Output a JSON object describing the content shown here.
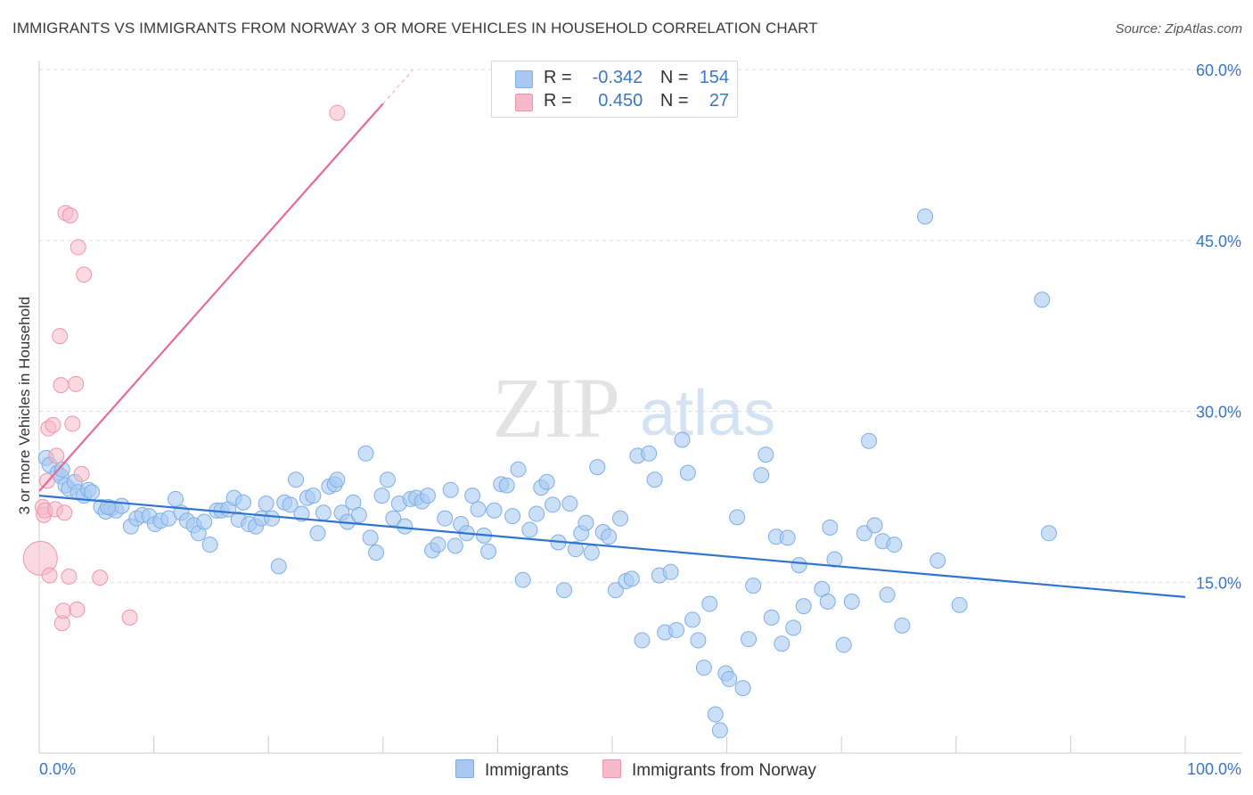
{
  "title": "IMMIGRANTS VS IMMIGRANTS FROM NORWAY 3 OR MORE VEHICLES IN HOUSEHOLD CORRELATION CHART",
  "source": "Source: ZipAtlas.com",
  "watermark": {
    "zip": "ZIP",
    "atlas": "atlas"
  },
  "legend": {
    "rows": [
      {
        "r_label": "R =",
        "r_value": "-0.342",
        "n_label": "N =",
        "n_value": "154",
        "color": "#a9c9f2"
      },
      {
        "r_label": "R =",
        "r_value": "0.450",
        "n_label": "N =",
        "n_value": "27",
        "color": "#f6b9c9"
      }
    ]
  },
  "bottom_legend": {
    "immigrants": "Immigrants",
    "norway": "Immigrants from Norway"
  },
  "colors": {
    "blue_fill": "#a9c9f2",
    "blue_stroke": "#7eaee6",
    "blue_line": "#2f74d0",
    "pink_fill": "#f6b9c9",
    "pink_stroke": "#ef94ad",
    "pink_line": "#e56b94",
    "axis_text": "#3a76c4",
    "grid": "#dedede"
  },
  "chart_data": {
    "type": "scatter",
    "xlabel": "",
    "ylabel": "3 or more Vehicles in Household",
    "xlim": [
      0,
      100
    ],
    "ylim": [
      0,
      60
    ],
    "x_tick_labels": [
      "0.0%",
      "100.0%"
    ],
    "y_tick_labels": [
      "15.0%",
      "30.0%",
      "45.0%",
      "60.0%"
    ],
    "y_ticks": [
      15,
      30,
      45,
      60
    ],
    "grid": true,
    "series": [
      {
        "name": "Immigrants",
        "points": [
          [
            0.6,
            25.9
          ],
          [
            0.9,
            25.3
          ],
          [
            1.6,
            24.6
          ],
          [
            1.9,
            24.3
          ],
          [
            2.3,
            23.5
          ],
          [
            2.6,
            23.2
          ],
          [
            3.1,
            23.8
          ],
          [
            3.4,
            22.9
          ],
          [
            3.9,
            22.6
          ],
          [
            4.3,
            23.1
          ],
          [
            4.6,
            22.9
          ],
          [
            5.4,
            21.6
          ],
          [
            5.8,
            21.2
          ],
          [
            6.3,
            21.5
          ],
          [
            6.7,
            21.3
          ],
          [
            7.2,
            21.7
          ],
          [
            8.0,
            19.9
          ],
          [
            8.5,
            20.6
          ],
          [
            9.0,
            20.9
          ],
          [
            9.6,
            20.8
          ],
          [
            10.1,
            20.1
          ],
          [
            10.6,
            20.4
          ],
          [
            11.3,
            20.6
          ],
          [
            11.9,
            22.3
          ],
          [
            12.4,
            21.1
          ],
          [
            12.9,
            20.4
          ],
          [
            13.5,
            20.0
          ],
          [
            13.9,
            19.3
          ],
          [
            14.4,
            20.3
          ],
          [
            14.9,
            18.3
          ],
          [
            15.5,
            21.3
          ],
          [
            15.9,
            21.3
          ],
          [
            16.5,
            21.4
          ],
          [
            17.0,
            22.4
          ],
          [
            17.4,
            20.5
          ],
          [
            17.8,
            22.0
          ],
          [
            18.3,
            20.1
          ],
          [
            18.9,
            19.9
          ],
          [
            19.4,
            20.6
          ],
          [
            19.8,
            21.9
          ],
          [
            20.3,
            20.6
          ],
          [
            20.9,
            16.4
          ],
          [
            21.4,
            22.0
          ],
          [
            21.9,
            21.8
          ],
          [
            22.4,
            24.0
          ],
          [
            22.9,
            21.0
          ],
          [
            23.4,
            22.4
          ],
          [
            23.9,
            22.6
          ],
          [
            24.3,
            19.3
          ],
          [
            24.8,
            21.1
          ],
          [
            25.3,
            23.4
          ],
          [
            25.8,
            23.6
          ],
          [
            26.4,
            21.1
          ],
          [
            26.9,
            20.3
          ],
          [
            27.4,
            22.0
          ],
          [
            27.9,
            20.9
          ],
          [
            28.5,
            26.3
          ],
          [
            28.9,
            18.9
          ],
          [
            29.4,
            17.6
          ],
          [
            29.9,
            22.6
          ],
          [
            30.4,
            24.0
          ],
          [
            30.9,
            20.6
          ],
          [
            31.4,
            21.9
          ],
          [
            31.9,
            19.9
          ],
          [
            32.4,
            22.3
          ],
          [
            32.9,
            22.4
          ],
          [
            33.4,
            22.1
          ],
          [
            33.9,
            22.6
          ],
          [
            34.3,
            17.8
          ],
          [
            34.8,
            18.3
          ],
          [
            35.4,
            20.6
          ],
          [
            35.9,
            23.1
          ],
          [
            36.3,
            18.2
          ],
          [
            36.8,
            20.1
          ],
          [
            37.3,
            19.3
          ],
          [
            37.8,
            22.6
          ],
          [
            38.3,
            21.4
          ],
          [
            38.8,
            19.1
          ],
          [
            39.2,
            17.7
          ],
          [
            39.7,
            21.3
          ],
          [
            40.3,
            23.6
          ],
          [
            40.8,
            23.5
          ],
          [
            41.3,
            20.8
          ],
          [
            41.8,
            24.9
          ],
          [
            42.2,
            15.2
          ],
          [
            42.8,
            19.6
          ],
          [
            43.4,
            21.0
          ],
          [
            43.8,
            23.3
          ],
          [
            44.3,
            23.8
          ],
          [
            44.8,
            21.8
          ],
          [
            45.3,
            18.5
          ],
          [
            45.8,
            14.3
          ],
          [
            46.3,
            21.9
          ],
          [
            46.8,
            17.9
          ],
          [
            47.3,
            19.3
          ],
          [
            47.7,
            20.2
          ],
          [
            48.2,
            17.6
          ],
          [
            48.7,
            25.1
          ],
          [
            49.2,
            19.4
          ],
          [
            49.7,
            19.0
          ],
          [
            50.3,
            14.3
          ],
          [
            50.7,
            20.6
          ],
          [
            51.2,
            15.1
          ],
          [
            51.7,
            15.3
          ],
          [
            52.2,
            26.1
          ],
          [
            52.6,
            9.9
          ],
          [
            53.2,
            26.3
          ],
          [
            53.7,
            24.0
          ],
          [
            54.1,
            15.6
          ],
          [
            54.6,
            10.6
          ],
          [
            55.1,
            15.9
          ],
          [
            55.6,
            10.8
          ],
          [
            56.1,
            27.5
          ],
          [
            56.6,
            24.6
          ],
          [
            57.0,
            11.7
          ],
          [
            57.5,
            9.9
          ],
          [
            58.0,
            7.5
          ],
          [
            58.5,
            13.1
          ],
          [
            59.0,
            3.4
          ],
          [
            59.4,
            2.0
          ],
          [
            59.9,
            7.0
          ],
          [
            60.2,
            6.5
          ],
          [
            60.9,
            20.7
          ],
          [
            61.4,
            5.7
          ],
          [
            61.9,
            10.0
          ],
          [
            62.3,
            14.7
          ],
          [
            63.0,
            24.4
          ],
          [
            63.4,
            26.2
          ],
          [
            63.9,
            11.9
          ],
          [
            64.3,
            19.0
          ],
          [
            64.8,
            9.6
          ],
          [
            65.3,
            18.9
          ],
          [
            65.8,
            11.0
          ],
          [
            66.3,
            16.5
          ],
          [
            66.7,
            12.9
          ],
          [
            68.3,
            14.4
          ],
          [
            68.8,
            13.3
          ],
          [
            69.0,
            19.8
          ],
          [
            69.4,
            17.0
          ],
          [
            70.2,
            9.5
          ],
          [
            70.9,
            13.3
          ],
          [
            72.0,
            19.3
          ],
          [
            72.4,
            27.4
          ],
          [
            72.9,
            20.0
          ],
          [
            73.6,
            18.6
          ],
          [
            74.0,
            13.9
          ],
          [
            74.6,
            18.3
          ],
          [
            75.3,
            11.2
          ],
          [
            77.3,
            47.1
          ],
          [
            78.4,
            16.9
          ],
          [
            80.3,
            13.0
          ],
          [
            87.5,
            39.8
          ],
          [
            88.1,
            19.3
          ],
          [
            2.0,
            24.9
          ],
          [
            6.0,
            21.6
          ],
          [
            26.0,
            24.0
          ]
        ]
      },
      {
        "name": "Immigrants from Norway",
        "points": [
          [
            0.1,
            17.1
          ],
          [
            0.3,
            21.6
          ],
          [
            0.4,
            20.9
          ],
          [
            0.5,
            21.3
          ],
          [
            0.7,
            23.9
          ],
          [
            0.8,
            28.5
          ],
          [
            0.9,
            15.6
          ],
          [
            1.2,
            28.8
          ],
          [
            1.4,
            21.4
          ],
          [
            1.5,
            26.1
          ],
          [
            1.8,
            36.6
          ],
          [
            1.9,
            32.3
          ],
          [
            2.0,
            11.4
          ],
          [
            2.1,
            12.5
          ],
          [
            2.2,
            21.1
          ],
          [
            2.3,
            47.4
          ],
          [
            2.6,
            15.5
          ],
          [
            2.7,
            47.2
          ],
          [
            2.9,
            28.9
          ],
          [
            3.2,
            32.4
          ],
          [
            3.3,
            12.6
          ],
          [
            3.4,
            44.4
          ],
          [
            3.7,
            24.5
          ],
          [
            3.9,
            42.0
          ],
          [
            5.3,
            15.4
          ],
          [
            7.9,
            11.9
          ],
          [
            26.0,
            56.2
          ]
        ]
      }
    ],
    "trend_lines": [
      {
        "series": "Immigrants",
        "x": [
          0,
          100
        ],
        "y": [
          22.6,
          13.7
        ]
      },
      {
        "series": "Immigrants from Norway",
        "x": [
          0,
          30
        ],
        "y": [
          23.0,
          57.0
        ]
      }
    ]
  }
}
